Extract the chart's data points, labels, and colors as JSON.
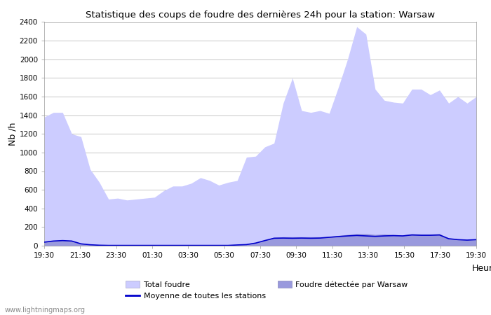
{
  "title": "Statistique des coups de foudre des dernières 24h pour la station: Warsaw",
  "xlabel": "Heure",
  "ylabel": "Nb /h",
  "xlim_labels": [
    "19:30",
    "21:30",
    "23:30",
    "01:30",
    "03:30",
    "05:30",
    "07:30",
    "09:30",
    "11:30",
    "13:30",
    "15:30",
    "17:30",
    "19:30"
  ],
  "ylim": [
    0,
    2400
  ],
  "yticks": [
    0,
    200,
    400,
    600,
    800,
    1000,
    1200,
    1400,
    1600,
    1800,
    2000,
    2200,
    2400
  ],
  "total_foudre_color": "#ccccff",
  "warsaw_color": "#9999dd",
  "moyenne_color": "#0000cc",
  "background_color": "#ffffff",
  "watermark": "www.lightningmaps.org",
  "legend_total": "Total foudre",
  "legend_warsaw": "Foudre détectée par Warsaw",
  "legend_moyenne": "Moyenne de toutes les stations",
  "total_foudre": [
    1380,
    1430,
    1430,
    1200,
    1170,
    820,
    680,
    500,
    510,
    490,
    500,
    510,
    520,
    590,
    640,
    640,
    670,
    730,
    700,
    650,
    680,
    700,
    950,
    960,
    1060,
    1100,
    1530,
    1800,
    1450,
    1430,
    1450,
    1420,
    1700,
    2000,
    2350,
    2270,
    1680,
    1560,
    1540,
    1530,
    1680,
    1680,
    1620,
    1670,
    1530,
    1600,
    1530,
    1600
  ],
  "warsaw_foudre": [
    40,
    55,
    60,
    55,
    20,
    10,
    5,
    5,
    5,
    5,
    5,
    5,
    5,
    5,
    5,
    5,
    5,
    5,
    5,
    5,
    5,
    10,
    20,
    35,
    60,
    90,
    95,
    95,
    95,
    95,
    95,
    100,
    110,
    120,
    130,
    130,
    120,
    125,
    120,
    115,
    130,
    125,
    125,
    130,
    80,
    70,
    65,
    70
  ],
  "moyenne": [
    38,
    50,
    55,
    50,
    20,
    10,
    5,
    3,
    3,
    3,
    3,
    3,
    3,
    3,
    3,
    3,
    3,
    3,
    3,
    3,
    3,
    8,
    12,
    28,
    55,
    80,
    82,
    80,
    82,
    80,
    82,
    90,
    98,
    105,
    110,
    105,
    100,
    105,
    108,
    105,
    115,
    112,
    112,
    115,
    75,
    65,
    60,
    65
  ],
  "n_points": 48
}
